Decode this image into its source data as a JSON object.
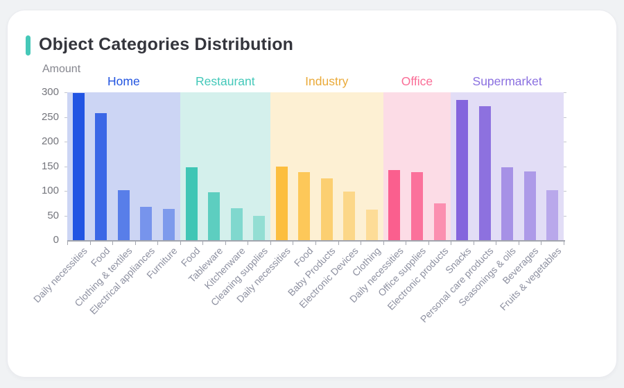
{
  "card": {
    "title": "Object Categories Distribution",
    "accent_color": "#45c8b8"
  },
  "chart_data": {
    "type": "bar",
    "title": "Object Categories Distribution",
    "xlabel": "",
    "ylabel": "Amount",
    "ylim": [
      0,
      300
    ],
    "yticks": [
      0,
      50,
      100,
      150,
      200,
      250,
      300
    ],
    "grid": false,
    "legend_position": "inline-top-group-headers",
    "groups": [
      {
        "name": "Home",
        "color": "#2154e3",
        "label_color": "#2254e0",
        "band_color": "#ccd5f4",
        "bars": [
          {
            "label": "Daily necessities",
            "value": 298,
            "opacity": 1
          },
          {
            "label": "Food",
            "value": 258,
            "opacity": 0.85
          },
          {
            "label": "Clothing & textiles",
            "value": 101,
            "opacity": 0.68
          },
          {
            "label": "Electrical appliances",
            "value": 68,
            "opacity": 0.5
          },
          {
            "label": "Furniture",
            "value": 63,
            "opacity": 0.46
          }
        ]
      },
      {
        "name": "Restaurant",
        "color": "#3fc6b5",
        "label_color": "#43c8b9",
        "band_color": "#d4f0ec",
        "bars": [
          {
            "label": "Food",
            "value": 148,
            "opacity": 1
          },
          {
            "label": "Tableware",
            "value": 97,
            "opacity": 0.8
          },
          {
            "label": "Kitchenware",
            "value": 65,
            "opacity": 0.56
          },
          {
            "label": "Cleaning supplies",
            "value": 50,
            "opacity": 0.44
          }
        ]
      },
      {
        "name": "Industry",
        "color": "#fcbe3e",
        "label_color": "#eaaa39",
        "band_color": "#fdf0d3",
        "bars": [
          {
            "label": "Daily necessities",
            "value": 150,
            "opacity": 1
          },
          {
            "label": "Food",
            "value": 138,
            "opacity": 0.82
          },
          {
            "label": "Baby Products",
            "value": 126,
            "opacity": 0.66
          },
          {
            "label": "Electronic Devices",
            "value": 99,
            "opacity": 0.5
          },
          {
            "label": "Clothing",
            "value": 62,
            "opacity": 0.4
          }
        ]
      },
      {
        "name": "Office",
        "color": "#fa5f8e",
        "label_color": "#fa6d96",
        "band_color": "#fcdce6",
        "bars": [
          {
            "label": "Daily necessities",
            "value": 142,
            "opacity": 1
          },
          {
            "label": "Office supplies",
            "value": 138,
            "opacity": 0.86
          },
          {
            "label": "Electronic products",
            "value": 75,
            "opacity": 0.62
          }
        ]
      },
      {
        "name": "Supermarket",
        "color": "#8465dd",
        "label_color": "#8a6fe0",
        "band_color": "#e2ddf6",
        "bars": [
          {
            "label": "Snacks",
            "value": 285,
            "opacity": 1
          },
          {
            "label": "Personal care products",
            "value": 272,
            "opacity": 0.9
          },
          {
            "label": "Seasonings & oils",
            "value": 148,
            "opacity": 0.64
          },
          {
            "label": "Beverages",
            "value": 140,
            "opacity": 0.56
          },
          {
            "label": "Fruits & vegetables",
            "value": 101,
            "opacity": 0.44
          }
        ]
      }
    ]
  }
}
